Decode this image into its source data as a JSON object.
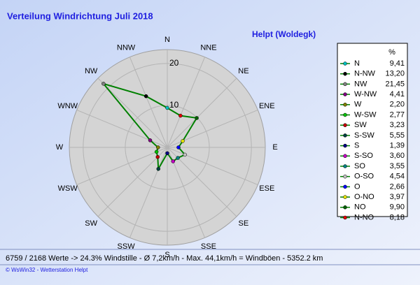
{
  "chart_data": {
    "type": "radar",
    "title": "Verteilung Windrichtung   Juli 2018",
    "subtitle": "Helpt (Woldegk)",
    "directions": [
      "N",
      "NNE",
      "NE",
      "ENE",
      "E",
      "ESE",
      "SE",
      "SSE",
      "S",
      "SSW",
      "SW",
      "WSW",
      "W",
      "WNW",
      "NW",
      "NNW"
    ],
    "categories": [
      "N",
      "N-NW",
      "NW",
      "W-NW",
      "W",
      "W-SW",
      "SW",
      "S-SW",
      "S",
      "S-SO",
      "SO",
      "O-SO",
      "O",
      "O-NO",
      "NO",
      "N-NO"
    ],
    "values": [
      9.41,
      13.2,
      21.45,
      4.41,
      2.2,
      2.77,
      3.23,
      5.55,
      1.39,
      3.6,
      3.55,
      4.54,
      2.66,
      3.97,
      9.9,
      8.18
    ],
    "value_labels": [
      "9,41",
      "13,20",
      "21,45",
      "4,41",
      "2,20",
      "2,77",
      "3,23",
      "5,55",
      "1,39",
      "3,60",
      "3,55",
      "4,54",
      "2,66",
      "3,97",
      "9,90",
      "8,18"
    ],
    "point_colors": [
      "#00c0c0",
      "#000000",
      "#808080",
      "#800080",
      "#808000",
      "#00c000",
      "#c00000",
      "#004040",
      "#000080",
      "#c000c0",
      "#008080",
      "#c0c0c0",
      "#0000ff",
      "#e0e000",
      "#006000",
      "#e00000"
    ],
    "line_color": "#008000",
    "rlim": [
      0,
      23.3
    ],
    "rticks": [
      10,
      20
    ],
    "legend_header": "%",
    "footer": "6759 / 2168 Werte  -> 24.3% Windstille   -   Ø 7,2km/h  -  Max. 44,1km/h = Windböen   -   5352.2 km",
    "credit": "© WsWin32  -  Wetterstation Helpt"
  }
}
